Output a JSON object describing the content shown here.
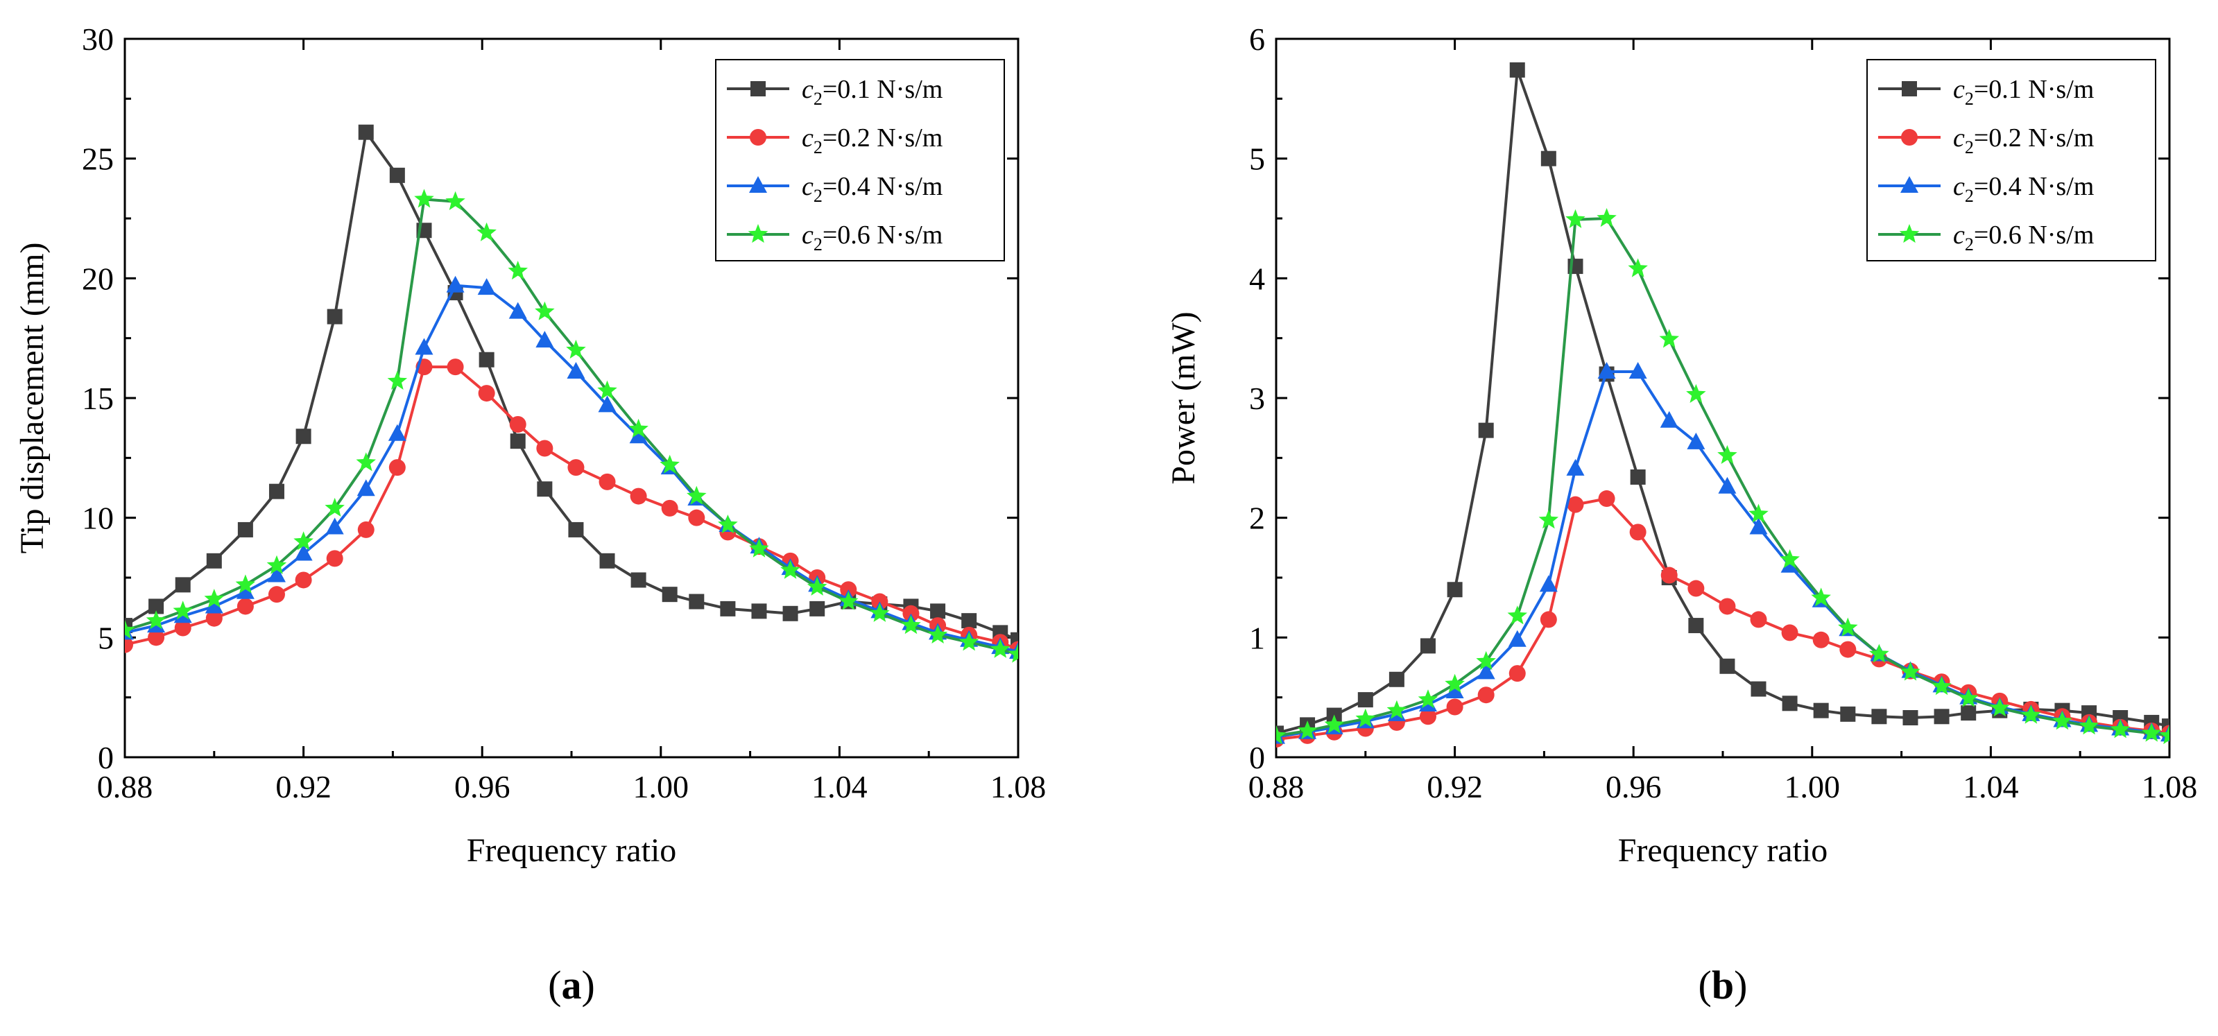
{
  "colors": {
    "c01": "#3f3f3f",
    "c02": "#ef3b3b",
    "c04": "#1966e6",
    "c06": "#2a9a48",
    "c06_marker": "#2ef22e"
  },
  "chart_data": [
    {
      "type": "line",
      "panel_label": "(a)",
      "title": "",
      "xlabel": "Frequency ratio",
      "ylabel": "Tip displacement (mm)",
      "xlim": [
        0.88,
        1.08
      ],
      "ylim": [
        0,
        30
      ],
      "xticks": [
        "0.88",
        "0.92",
        "0.96",
        "1.00",
        "1.04",
        "1.08"
      ],
      "yticks": [
        "0",
        "5",
        "10",
        "15",
        "20",
        "25",
        "30"
      ],
      "legend_position": "top-right",
      "x": [
        0.88,
        0.887,
        0.893,
        0.9,
        0.907,
        0.914,
        0.92,
        0.927,
        0.934,
        0.941,
        0.947,
        0.954,
        0.961,
        0.968,
        0.974,
        0.981,
        0.988,
        0.995,
        1.002,
        1.008,
        1.015,
        1.022,
        1.029,
        1.035,
        1.042,
        1.049,
        1.056,
        1.062,
        1.069,
        1.076,
        1.08
      ],
      "series": [
        {
          "name": "c2=0.1 N·s/m",
          "legend_symbol": "c",
          "legend_sub": "2",
          "legend_rest": "=0.1 N·s/m",
          "color_key": "c01",
          "marker": "square",
          "values": [
            5.5,
            6.3,
            7.2,
            8.2,
            9.5,
            11.1,
            13.4,
            18.4,
            26.1,
            24.3,
            22.0,
            19.4,
            16.6,
            13.2,
            11.2,
            9.5,
            8.2,
            7.4,
            6.8,
            6.5,
            6.2,
            6.1,
            6.0,
            6.2,
            6.5,
            6.4,
            6.3,
            6.1,
            5.7,
            5.2,
            4.9
          ]
        },
        {
          "name": "c2=0.2 N·s/m",
          "legend_symbol": "c",
          "legend_sub": "2",
          "legend_rest": "=0.2 N·s/m",
          "color_key": "c02",
          "marker": "circle",
          "values": [
            4.7,
            5.0,
            5.4,
            5.8,
            6.3,
            6.8,
            7.4,
            8.3,
            9.5,
            12.1,
            16.3,
            16.3,
            15.2,
            13.9,
            12.9,
            12.1,
            11.5,
            10.9,
            10.4,
            10.0,
            9.4,
            8.8,
            8.2,
            7.5,
            7.0,
            6.5,
            6.0,
            5.5,
            5.1,
            4.8,
            4.5
          ]
        },
        {
          "name": "c2=0.4 N·s/m",
          "legend_symbol": "c",
          "legend_sub": "2",
          "legend_rest": "=0.4 N·s/m",
          "color_key": "c04",
          "marker": "triangle",
          "values": [
            5.2,
            5.5,
            5.9,
            6.3,
            6.9,
            7.6,
            8.5,
            9.6,
            11.2,
            13.5,
            17.1,
            19.7,
            19.6,
            18.6,
            17.4,
            16.1,
            14.7,
            13.4,
            12.1,
            10.8,
            9.7,
            8.8,
            7.9,
            7.2,
            6.6,
            6.1,
            5.6,
            5.2,
            4.9,
            4.6,
            4.4
          ]
        },
        {
          "name": "c2=0.6 N·s/m",
          "legend_symbol": "c",
          "legend_sub": "2",
          "legend_rest": "=0.6 N·s/m",
          "color_key": "c06",
          "marker_color_key": "c06_marker",
          "marker": "star",
          "values": [
            5.3,
            5.7,
            6.1,
            6.6,
            7.2,
            8.0,
            9.0,
            10.4,
            12.3,
            15.7,
            23.3,
            23.2,
            21.9,
            20.3,
            18.6,
            17.0,
            15.3,
            13.7,
            12.2,
            10.9,
            9.7,
            8.7,
            7.8,
            7.1,
            6.5,
            6.0,
            5.5,
            5.1,
            4.8,
            4.5,
            4.3
          ]
        }
      ]
    },
    {
      "type": "line",
      "panel_label": "(b)",
      "title": "",
      "xlabel": "Frequency ratio",
      "ylabel": "Power (mW)",
      "xlim": [
        0.88,
        1.08
      ],
      "ylim": [
        0,
        6
      ],
      "xticks": [
        "0.88",
        "0.92",
        "0.96",
        "1.00",
        "1.04",
        "1.08"
      ],
      "yticks": [
        "0",
        "1",
        "2",
        "3",
        "4",
        "5",
        "6"
      ],
      "legend_position": "top-right",
      "x": [
        0.88,
        0.887,
        0.893,
        0.9,
        0.907,
        0.914,
        0.92,
        0.927,
        0.934,
        0.941,
        0.947,
        0.954,
        0.961,
        0.968,
        0.974,
        0.981,
        0.988,
        0.995,
        1.002,
        1.008,
        1.015,
        1.022,
        1.029,
        1.035,
        1.042,
        1.049,
        1.056,
        1.062,
        1.069,
        1.076,
        1.08
      ],
      "series": [
        {
          "name": "c2=0.1 N·s/m",
          "legend_symbol": "c",
          "legend_sub": "2",
          "legend_rest": "=0.1 N·s/m",
          "color_key": "c01",
          "marker": "square",
          "values": [
            0.2,
            0.27,
            0.35,
            0.48,
            0.65,
            0.93,
            1.4,
            2.73,
            5.74,
            5.0,
            4.1,
            3.2,
            2.34,
            1.5,
            1.1,
            0.76,
            0.57,
            0.45,
            0.39,
            0.36,
            0.34,
            0.33,
            0.34,
            0.37,
            0.39,
            0.4,
            0.39,
            0.37,
            0.33,
            0.29,
            0.26
          ]
        },
        {
          "name": "c2=0.2 N·s/m",
          "legend_symbol": "c",
          "legend_sub": "2",
          "legend_rest": "=0.2 N·s/m",
          "color_key": "c02",
          "marker": "circle",
          "values": [
            0.15,
            0.18,
            0.21,
            0.24,
            0.29,
            0.34,
            0.42,
            0.52,
            0.7,
            1.15,
            2.11,
            2.16,
            1.88,
            1.52,
            1.41,
            1.26,
            1.15,
            1.04,
            0.98,
            0.9,
            0.82,
            0.72,
            0.63,
            0.54,
            0.47,
            0.4,
            0.34,
            0.29,
            0.25,
            0.22,
            0.2
          ]
        },
        {
          "name": "c2=0.4 N·s/m",
          "legend_symbol": "c",
          "legend_sub": "2",
          "legend_rest": "=0.4 N·s/m",
          "color_key": "c04",
          "marker": "triangle",
          "values": [
            0.17,
            0.21,
            0.25,
            0.3,
            0.36,
            0.44,
            0.55,
            0.71,
            0.98,
            1.44,
            2.41,
            3.22,
            3.22,
            2.81,
            2.63,
            2.26,
            1.92,
            1.6,
            1.31,
            1.07,
            0.86,
            0.72,
            0.6,
            0.5,
            0.42,
            0.36,
            0.31,
            0.27,
            0.24,
            0.21,
            0.19
          ]
        },
        {
          "name": "c2=0.6 N·s/m",
          "legend_symbol": "c",
          "legend_sub": "2",
          "legend_rest": "=0.6 N·s/m",
          "color_key": "c06",
          "marker_color_key": "c06_marker",
          "marker": "star",
          "values": [
            0.18,
            0.22,
            0.27,
            0.32,
            0.39,
            0.48,
            0.61,
            0.8,
            1.18,
            1.98,
            4.49,
            4.5,
            4.08,
            3.49,
            3.03,
            2.52,
            2.03,
            1.65,
            1.33,
            1.08,
            0.86,
            0.71,
            0.59,
            0.49,
            0.41,
            0.35,
            0.3,
            0.26,
            0.23,
            0.2,
            0.18
          ]
        }
      ]
    }
  ]
}
